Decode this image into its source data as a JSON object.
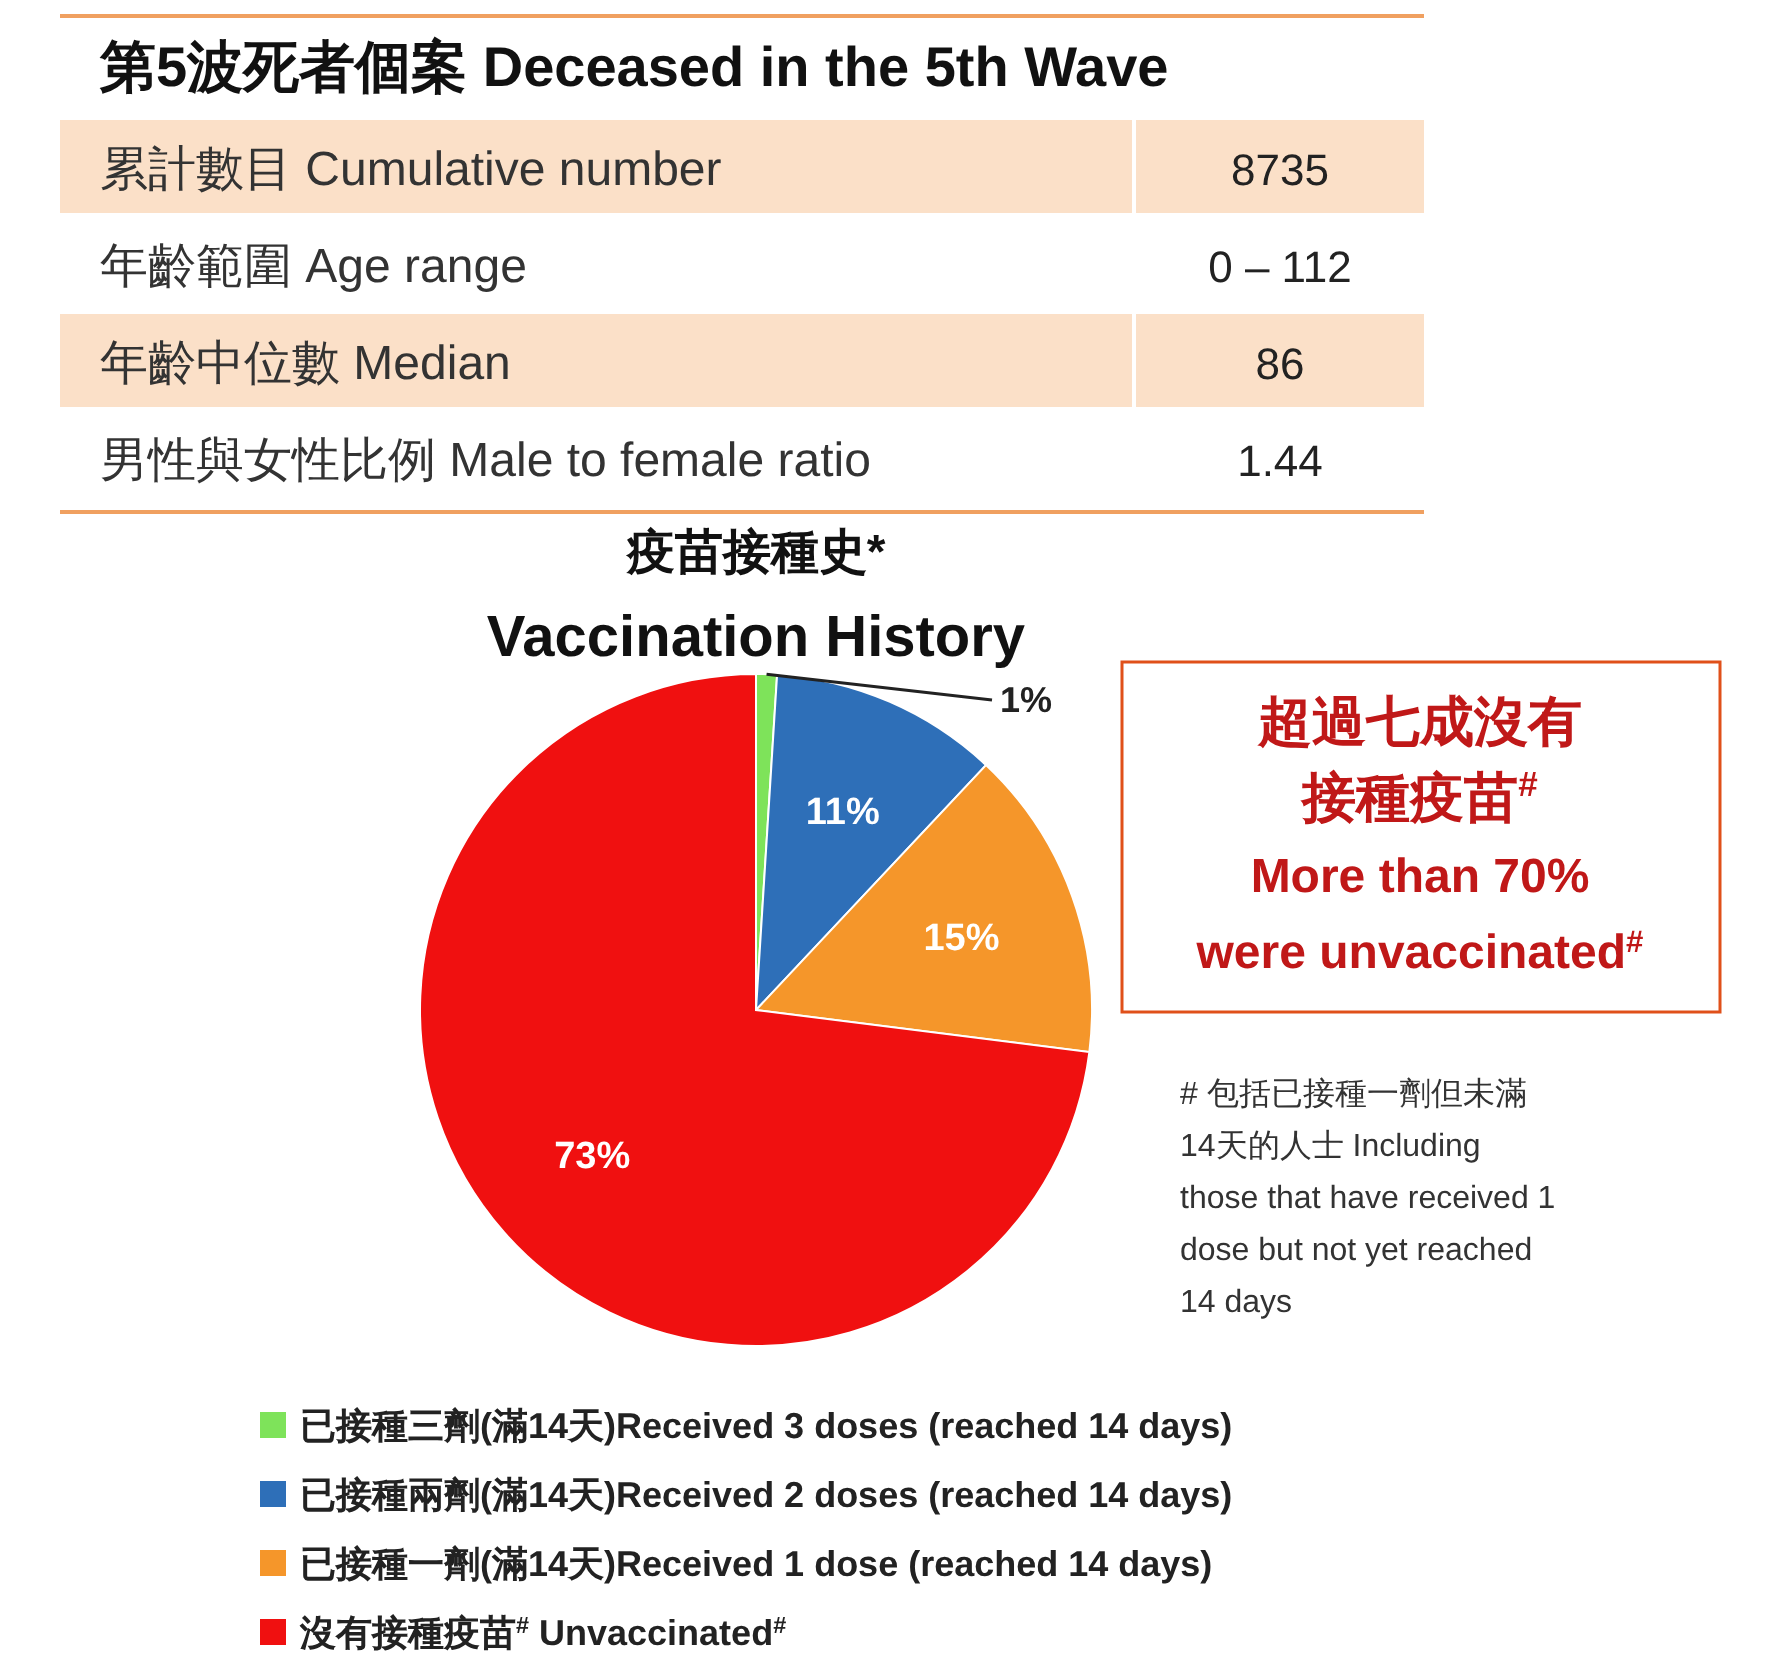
{
  "chart_data": [
    {
      "type": "other",
      "title": "第5波死者個案 Deceased in the 5th Wave",
      "annotations": [
        "累計數目 Cumulative number",
        "8735",
        "年齡範圍 Age range",
        "0 – 112",
        "年齡中位數 Median",
        "86",
        "男性與女性比例 Male to female ratio",
        "1.44"
      ]
    },
    {
      "type": "pie",
      "title": "疫苗接種史*",
      "subtitle": "Vaccination History",
      "categories": [
        "已接種三劑(滿14天)Received 3 doses (reached 14 days)",
        "已接種兩劑(滿14天)Received 2 doses (reached 14 days)",
        "已接種一劑(滿14天)Received 1 dose (reached 14 days)",
        "沒有接種疫苗$^{#}$ Unvaccinated$^{#}$"
      ],
      "values": [
        1,
        11,
        15,
        73
      ],
      "colors": [
        "#7ee35a",
        "#2e6fb8",
        "#f5962a",
        "#f01010"
      ],
      "value_labels": [
        "1%",
        "11%",
        "15%",
        "73%"
      ],
      "legend": "bottom",
      "annotations": [
        "超過七成沒有",
        "接種疫苗$^{#}$",
        "More than 70%\nwere unvaccinated$^{#}$",
        "# 包括已接種一劑但未滿\n14天的人士  Including\nthose that have received 1\ndose but not yet reached\n14 days"
      ]
    }
  ]
}
